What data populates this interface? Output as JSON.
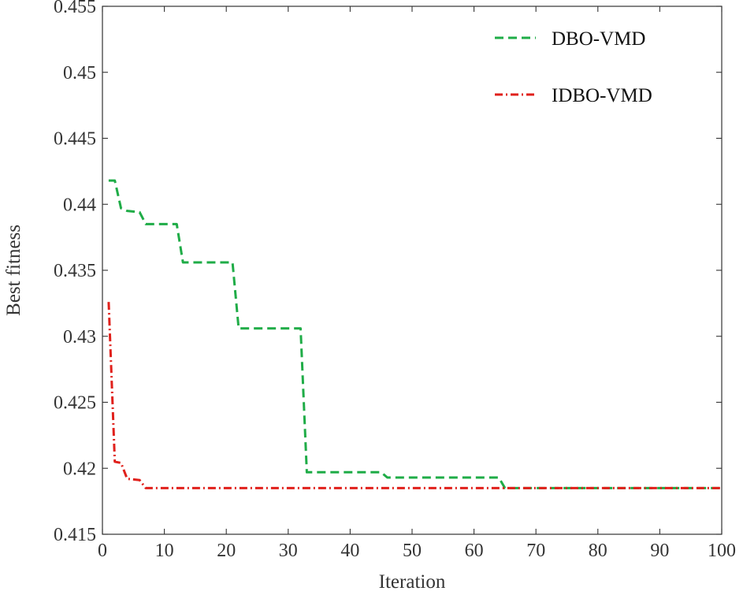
{
  "chart_data": {
    "type": "line",
    "title": "",
    "xlabel": "Iteration",
    "ylabel": "Best fitness",
    "xlim": [
      0,
      100
    ],
    "ylim": [
      0.415,
      0.455
    ],
    "x_ticks": [
      "0",
      "10",
      "20",
      "30",
      "40",
      "50",
      "60",
      "70",
      "80",
      "90",
      "100"
    ],
    "x_tick_values": [
      0,
      10,
      20,
      30,
      40,
      50,
      60,
      70,
      80,
      90,
      100
    ],
    "y_ticks": [
      "0.415",
      "0.42",
      "0.425",
      "0.43",
      "0.435",
      "0.44",
      "0.445",
      "0.45",
      "0.455"
    ],
    "y_tick_values": [
      0.415,
      0.42,
      0.425,
      0.43,
      0.435,
      0.44,
      0.445,
      0.45,
      0.455
    ],
    "grid": false,
    "legend_position": "top-right",
    "series": [
      {
        "name": "DBO-VMD",
        "color": "#1fac47",
        "dash": "dashed",
        "points": [
          [
            1,
            0.4418
          ],
          [
            2,
            0.4418
          ],
          [
            3,
            0.4397
          ],
          [
            4,
            0.4395
          ],
          [
            6,
            0.4394
          ],
          [
            7,
            0.4385
          ],
          [
            12,
            0.4385
          ],
          [
            13,
            0.4356
          ],
          [
            21,
            0.4356
          ],
          [
            22,
            0.4306
          ],
          [
            32,
            0.4306
          ],
          [
            33,
            0.4197
          ],
          [
            45,
            0.4197
          ],
          [
            46,
            0.4193
          ],
          [
            64,
            0.4193
          ],
          [
            65,
            0.4185
          ],
          [
            100,
            0.4185
          ]
        ]
      },
      {
        "name": "IDBO-VMD",
        "color": "#e0201b",
        "dash": "dash-dot",
        "points": [
          [
            1,
            0.4326
          ],
          [
            2,
            0.4205
          ],
          [
            3,
            0.4204
          ],
          [
            4,
            0.4192
          ],
          [
            6,
            0.4191
          ],
          [
            7,
            0.4185
          ],
          [
            100,
            0.4185
          ]
        ]
      }
    ]
  }
}
